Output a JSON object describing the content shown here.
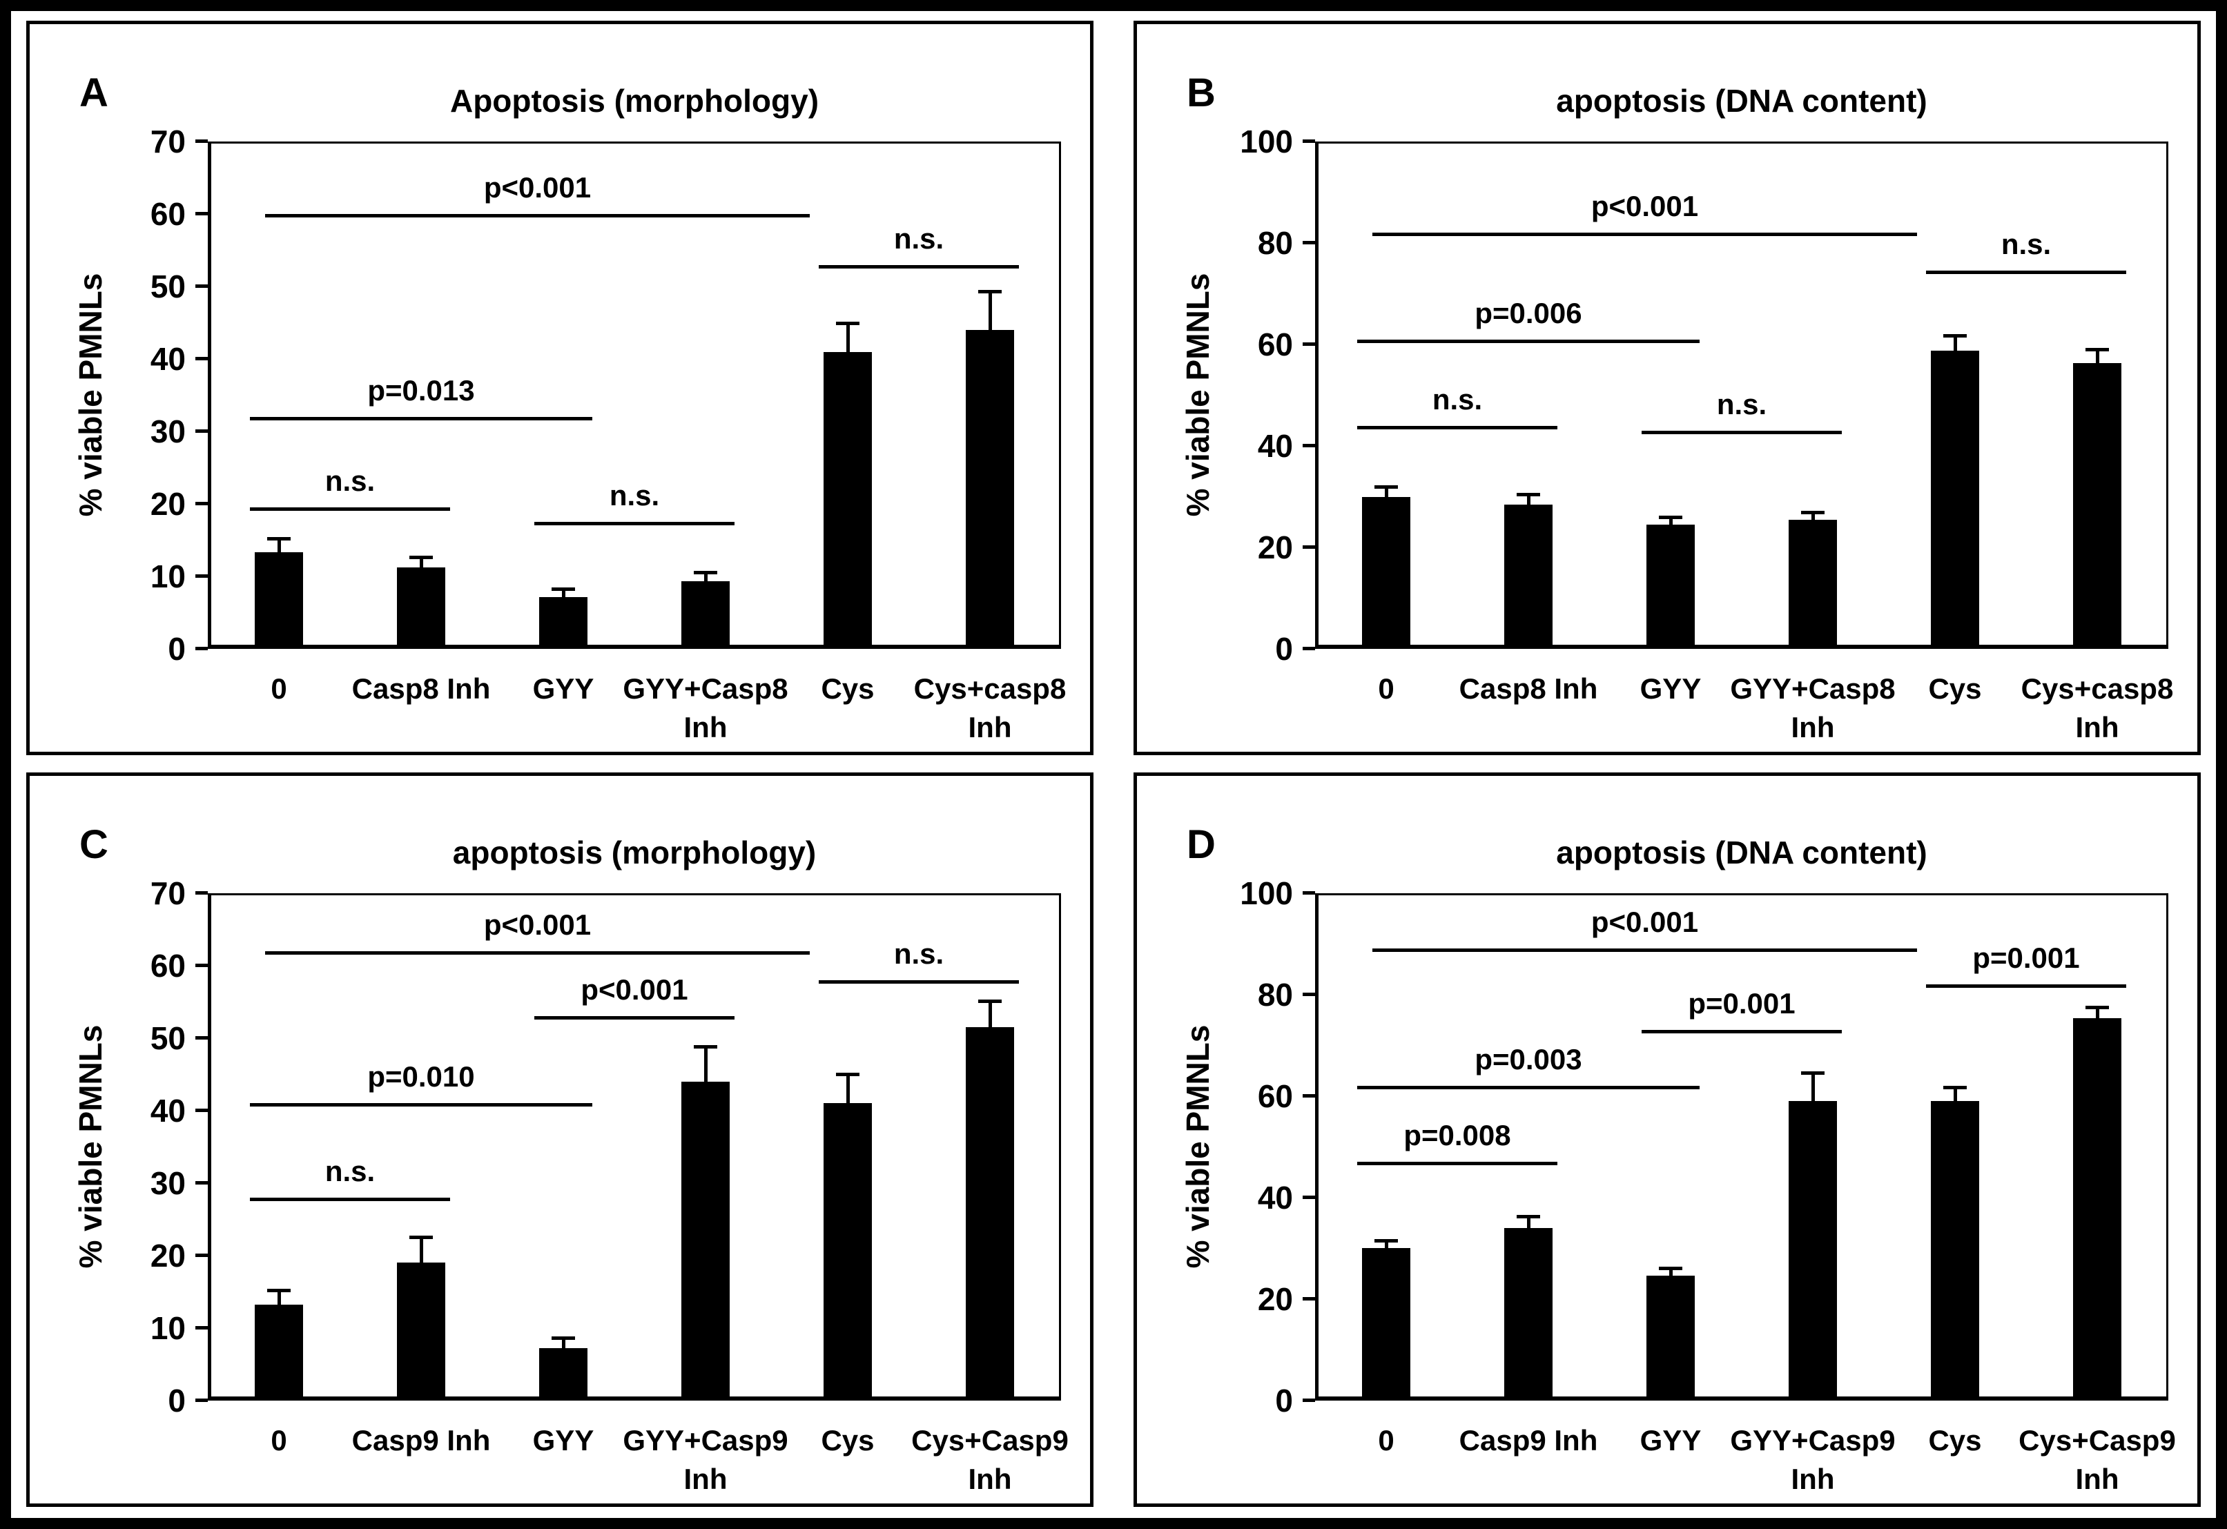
{
  "figure": {
    "background": "#ffffff",
    "frame_color": "#000000",
    "bar_color": "#000000"
  },
  "chart_data": [
    {
      "panel": "A",
      "type": "bar",
      "title": "Apoptosis (morphology)",
      "ylabel": "% viable PMNLs",
      "ylim": [
        0,
        70
      ],
      "yticks": [
        0,
        10,
        20,
        30,
        40,
        50,
        60,
        70
      ],
      "grid": false,
      "legend": "none",
      "categories": [
        "0",
        "Casp8 Inh",
        "GYY",
        "GYY+Casp8 Inh",
        "Cys",
        "Cys+casp8 Inh"
      ],
      "category_lines": [
        [
          "0"
        ],
        [
          "Casp8 Inh"
        ],
        [
          "GYY"
        ],
        [
          "GYY+Casp8",
          "Inh"
        ],
        [
          "Cys"
        ],
        [
          "Cys+casp8",
          "Inh"
        ]
      ],
      "values": [
        13.3,
        11.2,
        7.1,
        9.3,
        41,
        44
      ],
      "errors": [
        1.9,
        1.5,
        1.2,
        1.3,
        4,
        5.3
      ],
      "significance": [
        {
          "from": 0,
          "to": 1,
          "y": 19.5,
          "label": "n.s."
        },
        {
          "from": 0,
          "to": 2,
          "y": 32,
          "label": "p=0.013"
        },
        {
          "from": 0,
          "to": 4,
          "y": 60,
          "label": "p<0.001"
        },
        {
          "from": 2,
          "to": 3,
          "y": 17.5,
          "label": "n.s."
        },
        {
          "from": 4,
          "to": 5,
          "y": 53,
          "label": "n.s."
        }
      ]
    },
    {
      "panel": "B",
      "type": "bar",
      "title": "apoptosis (DNA content)",
      "ylabel": "% viable PMNLs",
      "ylim": [
        0,
        100
      ],
      "yticks": [
        0,
        20,
        40,
        60,
        80,
        100
      ],
      "grid": false,
      "legend": "none",
      "categories": [
        "0",
        "Casp8 Inh",
        "GYY",
        "GYY+Casp8 Inh",
        "Cys",
        "Cys+casp8 Inh"
      ],
      "category_lines": [
        [
          "0"
        ],
        [
          "Casp8 Inh"
        ],
        [
          "GYY"
        ],
        [
          "GYY+Casp8",
          "Inh"
        ],
        [
          "Cys"
        ],
        [
          "Cys+casp8",
          "Inh"
        ]
      ],
      "values": [
        30,
        28.5,
        24.5,
        25.5,
        58.8,
        56.3
      ],
      "errors": [
        2,
        2,
        1.5,
        1.5,
        3,
        2.7
      ],
      "significance": [
        {
          "from": 0,
          "to": 1,
          "y": 44,
          "label": "n.s."
        },
        {
          "from": 0,
          "to": 2,
          "y": 61,
          "label": "p=0.006"
        },
        {
          "from": 0,
          "to": 4,
          "y": 82,
          "label": "p<0.001"
        },
        {
          "from": 2,
          "to": 3,
          "y": 43,
          "label": "n.s."
        },
        {
          "from": 4,
          "to": 5,
          "y": 74.5,
          "label": "n.s."
        }
      ]
    },
    {
      "panel": "C",
      "type": "bar",
      "title": "apoptosis (morphology)",
      "ylabel": "% viable PMNLs",
      "ylim": [
        0,
        70
      ],
      "yticks": [
        0,
        10,
        20,
        30,
        40,
        50,
        60,
        70
      ],
      "grid": false,
      "legend": "none",
      "categories": [
        "0",
        "Casp9 Inh",
        "GYY",
        "GYY+Casp9 Inh",
        "Cys",
        "Cys+Casp9 Inh"
      ],
      "category_lines": [
        [
          "0"
        ],
        [
          "Casp9 Inh"
        ],
        [
          "GYY"
        ],
        [
          "GYY+Casp9",
          "Inh"
        ],
        [
          "Cys"
        ],
        [
          "Cys+Casp9",
          "Inh"
        ]
      ],
      "values": [
        13.2,
        19,
        7.2,
        44,
        41,
        51.5
      ],
      "errors": [
        2,
        3.5,
        1.4,
        4.8,
        4,
        3.6
      ],
      "significance": [
        {
          "from": 0,
          "to": 1,
          "y": 28,
          "label": "n.s."
        },
        {
          "from": 0,
          "to": 2,
          "y": 41,
          "label": "p=0.010"
        },
        {
          "from": 0,
          "to": 4,
          "y": 62,
          "label": "p<0.001"
        },
        {
          "from": 2,
          "to": 3,
          "y": 53,
          "label": "p<0.001"
        },
        {
          "from": 4,
          "to": 5,
          "y": 58,
          "label": "n.s."
        }
      ]
    },
    {
      "panel": "D",
      "type": "bar",
      "title": "apoptosis (DNA content)",
      "ylabel": "% viable PMNLs",
      "ylim": [
        0,
        100
      ],
      "yticks": [
        0,
        20,
        40,
        60,
        80,
        100
      ],
      "grid": false,
      "legend": "none",
      "categories": [
        "0",
        "Casp9 Inh",
        "GYY",
        "GYY+Casp9 Inh",
        "Cys",
        "Cys+Casp9 Inh"
      ],
      "category_lines": [
        [
          "0"
        ],
        [
          "Casp9 Inh"
        ],
        [
          "GYY"
        ],
        [
          "GYY+Casp9",
          "Inh"
        ],
        [
          "Cys"
        ],
        [
          "Cys+Casp9",
          "Inh"
        ]
      ],
      "values": [
        30,
        34,
        24.5,
        59,
        59,
        75.3
      ],
      "errors": [
        1.5,
        2.3,
        1.5,
        5.5,
        2.7,
        2.2
      ],
      "significance": [
        {
          "from": 0,
          "to": 1,
          "y": 47,
          "label": "p=0.008"
        },
        {
          "from": 0,
          "to": 2,
          "y": 62,
          "label": "p=0.003"
        },
        {
          "from": 0,
          "to": 4,
          "y": 89,
          "label": "p<0.001"
        },
        {
          "from": 2,
          "to": 3,
          "y": 73,
          "label": "p=0.001"
        },
        {
          "from": 4,
          "to": 5,
          "y": 82,
          "label": "p=0.001"
        }
      ]
    }
  ]
}
